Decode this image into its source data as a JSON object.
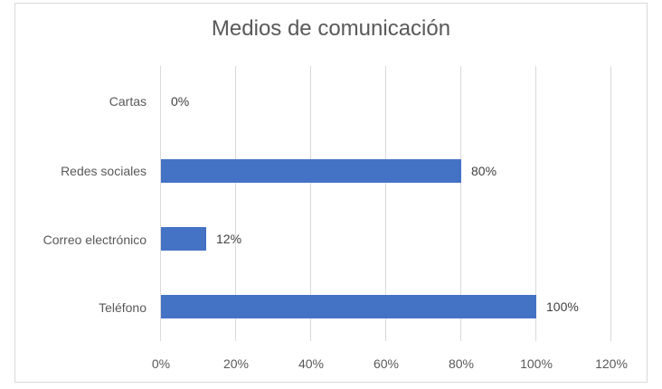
{
  "chart_data": {
    "type": "bar",
    "orientation": "horizontal",
    "title": "Medios de comunicación",
    "categories": [
      "Cartas",
      "Redes sociales",
      "Correo electrónico",
      "Teléfono"
    ],
    "values": [
      0,
      80,
      12,
      100
    ],
    "value_labels": [
      "0%",
      "80%",
      "12%",
      "100%"
    ],
    "xlabel": "",
    "ylabel": "",
    "xlim": [
      0,
      120
    ],
    "x_ticks": [
      "0%",
      "20%",
      "40%",
      "60%",
      "80%",
      "100%",
      "120%"
    ],
    "grid": true,
    "legend": null,
    "bar_color": "#4472C4"
  }
}
